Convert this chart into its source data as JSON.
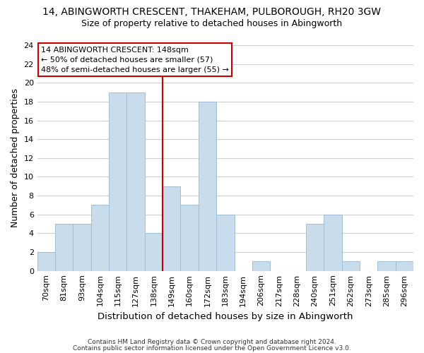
{
  "title": "14, ABINGWORTH CRESCENT, THAKEHAM, PULBOROUGH, RH20 3GW",
  "subtitle": "Size of property relative to detached houses in Abingworth",
  "xlabel": "Distribution of detached houses by size in Abingworth",
  "ylabel": "Number of detached properties",
  "categories": [
    "70sqm",
    "81sqm",
    "93sqm",
    "104sqm",
    "115sqm",
    "127sqm",
    "138sqm",
    "149sqm",
    "160sqm",
    "172sqm",
    "183sqm",
    "194sqm",
    "206sqm",
    "217sqm",
    "228sqm",
    "240sqm",
    "251sqm",
    "262sqm",
    "273sqm",
    "285sqm",
    "296sqm"
  ],
  "values": [
    2,
    5,
    5,
    7,
    19,
    19,
    4,
    9,
    7,
    18,
    6,
    0,
    1,
    0,
    0,
    5,
    6,
    1,
    0,
    1,
    1
  ],
  "bar_color": "#c9dcec",
  "bar_edge_color": "#a0bfd4",
  "highlight_line_color": "#cc0000",
  "annotation_title": "14 ABINGWORTH CRESCENT: 148sqm",
  "annotation_line1": "← 50% of detached houses are smaller (57)",
  "annotation_line2": "48% of semi-detached houses are larger (55) →",
  "annotation_box_color": "#ffffff",
  "annotation_box_edge_color": "#cc0000",
  "ylim": [
    0,
    24
  ],
  "yticks": [
    0,
    2,
    4,
    6,
    8,
    10,
    12,
    14,
    16,
    18,
    20,
    22,
    24
  ],
  "footnote1": "Contains HM Land Registry data © Crown copyright and database right 2024.",
  "footnote2": "Contains public sector information licensed under the Open Government Licence v3.0.",
  "background_color": "#ffffff",
  "grid_color": "#d0d0d0",
  "title_fontsize": 10,
  "subtitle_fontsize": 9,
  "ylabel_fontsize": 9,
  "xlabel_fontsize": 9.5,
  "tick_fontsize": 8,
  "annot_fontsize": 8,
  "footnote_fontsize": 6.5
}
